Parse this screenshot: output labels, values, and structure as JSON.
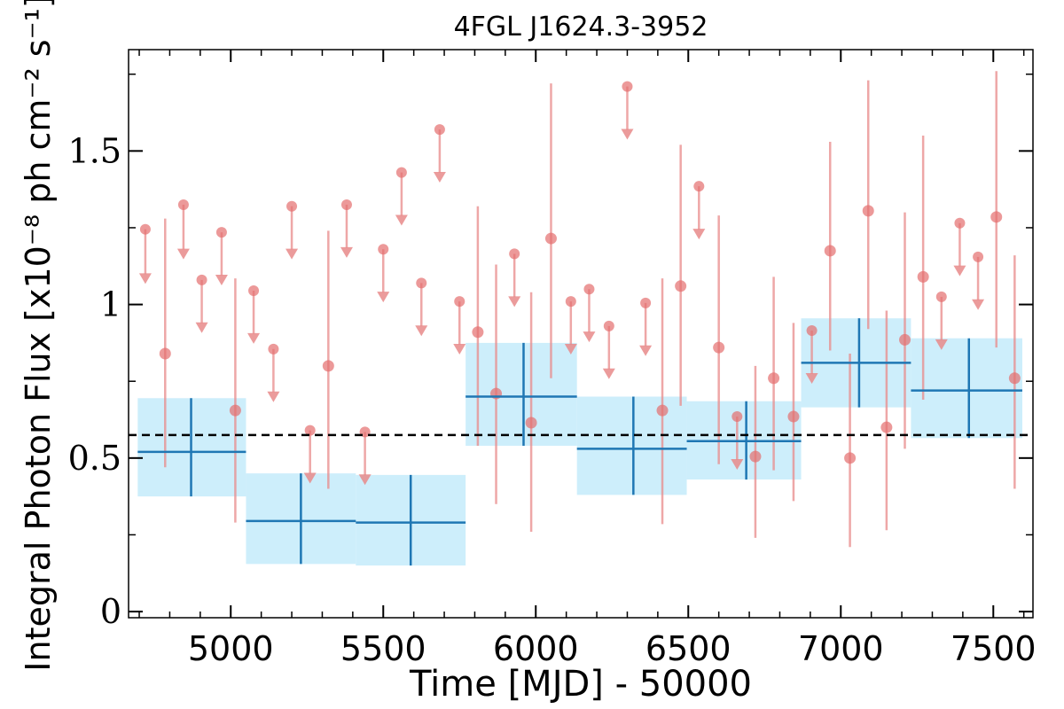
{
  "chart_data": {
    "type": "scatter",
    "title": "4FGL J1624.3-3952",
    "xlabel": "Time [MJD] - 50000",
    "ylabel": "Integral Photon Flux [x10⁻⁸ ph cm⁻² s⁻¹]",
    "xlim": [
      4665,
      7630
    ],
    "ylim": [
      -0.02,
      1.83
    ],
    "xticks": [
      5000,
      5500,
      6000,
      6500,
      7000,
      7500
    ],
    "xtick_labels": [
      "5000",
      "5500",
      "6000",
      "6500",
      "7000",
      "7500"
    ],
    "yticks": [
      0,
      0.5,
      1,
      1.5
    ],
    "ytick_labels": [
      "0",
      "0.5",
      "1",
      "1.5"
    ],
    "reference_line": {
      "y": 0.575,
      "style": "dashed"
    },
    "grid": false,
    "binned_series": {
      "color": "#1f77b4",
      "band_color": "#cdeefb",
      "points": [
        {
          "x": 4870,
          "xlo": 4695,
          "xhi": 5050,
          "y": 0.52,
          "ylo": 0.375,
          "yhi": 0.695
        },
        {
          "x": 5230,
          "xlo": 5050,
          "xhi": 5410,
          "y": 0.295,
          "ylo": 0.155,
          "yhi": 0.45
        },
        {
          "x": 5590,
          "xlo": 5410,
          "xhi": 5770,
          "y": 0.29,
          "ylo": 0.15,
          "yhi": 0.445
        },
        {
          "x": 5960,
          "xlo": 5770,
          "xhi": 6135,
          "y": 0.7,
          "ylo": 0.54,
          "yhi": 0.875
        },
        {
          "x": 6320,
          "xlo": 6135,
          "xhi": 6495,
          "y": 0.53,
          "ylo": 0.38,
          "yhi": 0.7
        },
        {
          "x": 6690,
          "xlo": 6495,
          "xhi": 6870,
          "y": 0.555,
          "ylo": 0.43,
          "yhi": 0.685
        },
        {
          "x": 7060,
          "xlo": 6870,
          "xhi": 7230,
          "y": 0.81,
          "ylo": 0.665,
          "yhi": 0.955
        },
        {
          "x": 7420,
          "xlo": 7230,
          "xhi": 7595,
          "y": 0.72,
          "ylo": 0.565,
          "yhi": 0.89
        }
      ]
    },
    "fine_series": {
      "color": "#e88a8a",
      "detections": [
        {
          "x": 4785,
          "y": 0.84,
          "ylo": 0.47,
          "yhi": 1.28
        },
        {
          "x": 5015,
          "y": 0.655,
          "ylo": 0.29,
          "yhi": 1.085
        },
        {
          "x": 5320,
          "y": 0.8,
          "ylo": 0.4,
          "yhi": 1.24
        },
        {
          "x": 5810,
          "y": 0.91,
          "ylo": 0.54,
          "yhi": 1.32
        },
        {
          "x": 5870,
          "y": 0.71,
          "ylo": 0.35,
          "yhi": 1.13
        },
        {
          "x": 5985,
          "y": 0.615,
          "ylo": 0.26,
          "yhi": 1.04
        },
        {
          "x": 6050,
          "y": 1.215,
          "ylo": 0.76,
          "yhi": 1.72
        },
        {
          "x": 6415,
          "y": 0.655,
          "ylo": 0.285,
          "yhi": 1.085
        },
        {
          "x": 6475,
          "y": 1.06,
          "ylo": 0.67,
          "yhi": 1.52
        },
        {
          "x": 6600,
          "y": 0.86,
          "ylo": 0.48,
          "yhi": 1.29
        },
        {
          "x": 6720,
          "y": 0.505,
          "ylo": 0.24,
          "yhi": 0.8
        },
        {
          "x": 6780,
          "y": 0.76,
          "ylo": 0.46,
          "yhi": 1.09
        },
        {
          "x": 6845,
          "y": 0.635,
          "ylo": 0.36,
          "yhi": 0.94
        },
        {
          "x": 6965,
          "y": 1.175,
          "ylo": 0.85,
          "yhi": 1.53
        },
        {
          "x": 7030,
          "y": 0.5,
          "ylo": 0.21,
          "yhi": 0.84
        },
        {
          "x": 7090,
          "y": 1.305,
          "ylo": 0.92,
          "yhi": 1.73
        },
        {
          "x": 7150,
          "y": 0.6,
          "ylo": 0.265,
          "yhi": 0.98
        },
        {
          "x": 7210,
          "y": 0.885,
          "ylo": 0.53,
          "yhi": 1.3
        },
        {
          "x": 7270,
          "y": 1.09,
          "ylo": 0.69,
          "yhi": 1.55
        },
        {
          "x": 7510,
          "y": 1.285,
          "ylo": 0.86,
          "yhi": 1.76
        },
        {
          "x": 7570,
          "y": 0.76,
          "ylo": 0.4,
          "yhi": 1.16
        }
      ],
      "upper_limits": [
        {
          "x": 4720,
          "y": 1.245,
          "arrow_to": 1.07
        },
        {
          "x": 4845,
          "y": 1.325,
          "arrow_to": 1.15
        },
        {
          "x": 4905,
          "y": 1.08,
          "arrow_to": 0.91
        },
        {
          "x": 4970,
          "y": 1.235,
          "arrow_to": 1.065
        },
        {
          "x": 5075,
          "y": 1.045,
          "arrow_to": 0.875
        },
        {
          "x": 5140,
          "y": 0.855,
          "arrow_to": 0.685
        },
        {
          "x": 5260,
          "y": 0.59,
          "arrow_to": 0.42
        },
        {
          "x": 5200,
          "y": 1.32,
          "arrow_to": 1.15
        },
        {
          "x": 5380,
          "y": 1.325,
          "arrow_to": 1.155
        },
        {
          "x": 5440,
          "y": 0.585,
          "arrow_to": 0.415
        },
        {
          "x": 5500,
          "y": 1.18,
          "arrow_to": 1.01
        },
        {
          "x": 5560,
          "y": 1.43,
          "arrow_to": 1.26
        },
        {
          "x": 5625,
          "y": 1.07,
          "arrow_to": 0.9
        },
        {
          "x": 5685,
          "y": 1.57,
          "arrow_to": 1.4
        },
        {
          "x": 5750,
          "y": 1.01,
          "arrow_to": 0.84
        },
        {
          "x": 5930,
          "y": 1.165,
          "arrow_to": 0.995
        },
        {
          "x": 6115,
          "y": 1.01,
          "arrow_to": 0.84
        },
        {
          "x": 6175,
          "y": 1.05,
          "arrow_to": 0.88
        },
        {
          "x": 6240,
          "y": 0.93,
          "arrow_to": 0.76
        },
        {
          "x": 6300,
          "y": 1.71,
          "arrow_to": 1.54
        },
        {
          "x": 6360,
          "y": 1.005,
          "arrow_to": 0.835
        },
        {
          "x": 6535,
          "y": 1.385,
          "arrow_to": 1.215
        },
        {
          "x": 6660,
          "y": 0.635,
          "arrow_to": 0.465
        },
        {
          "x": 6905,
          "y": 0.915,
          "arrow_to": 0.745
        },
        {
          "x": 7330,
          "y": 1.025,
          "arrow_to": 0.855
        },
        {
          "x": 7390,
          "y": 1.265,
          "arrow_to": 1.095
        },
        {
          "x": 7450,
          "y": 1.155,
          "arrow_to": 0.985
        }
      ]
    }
  }
}
